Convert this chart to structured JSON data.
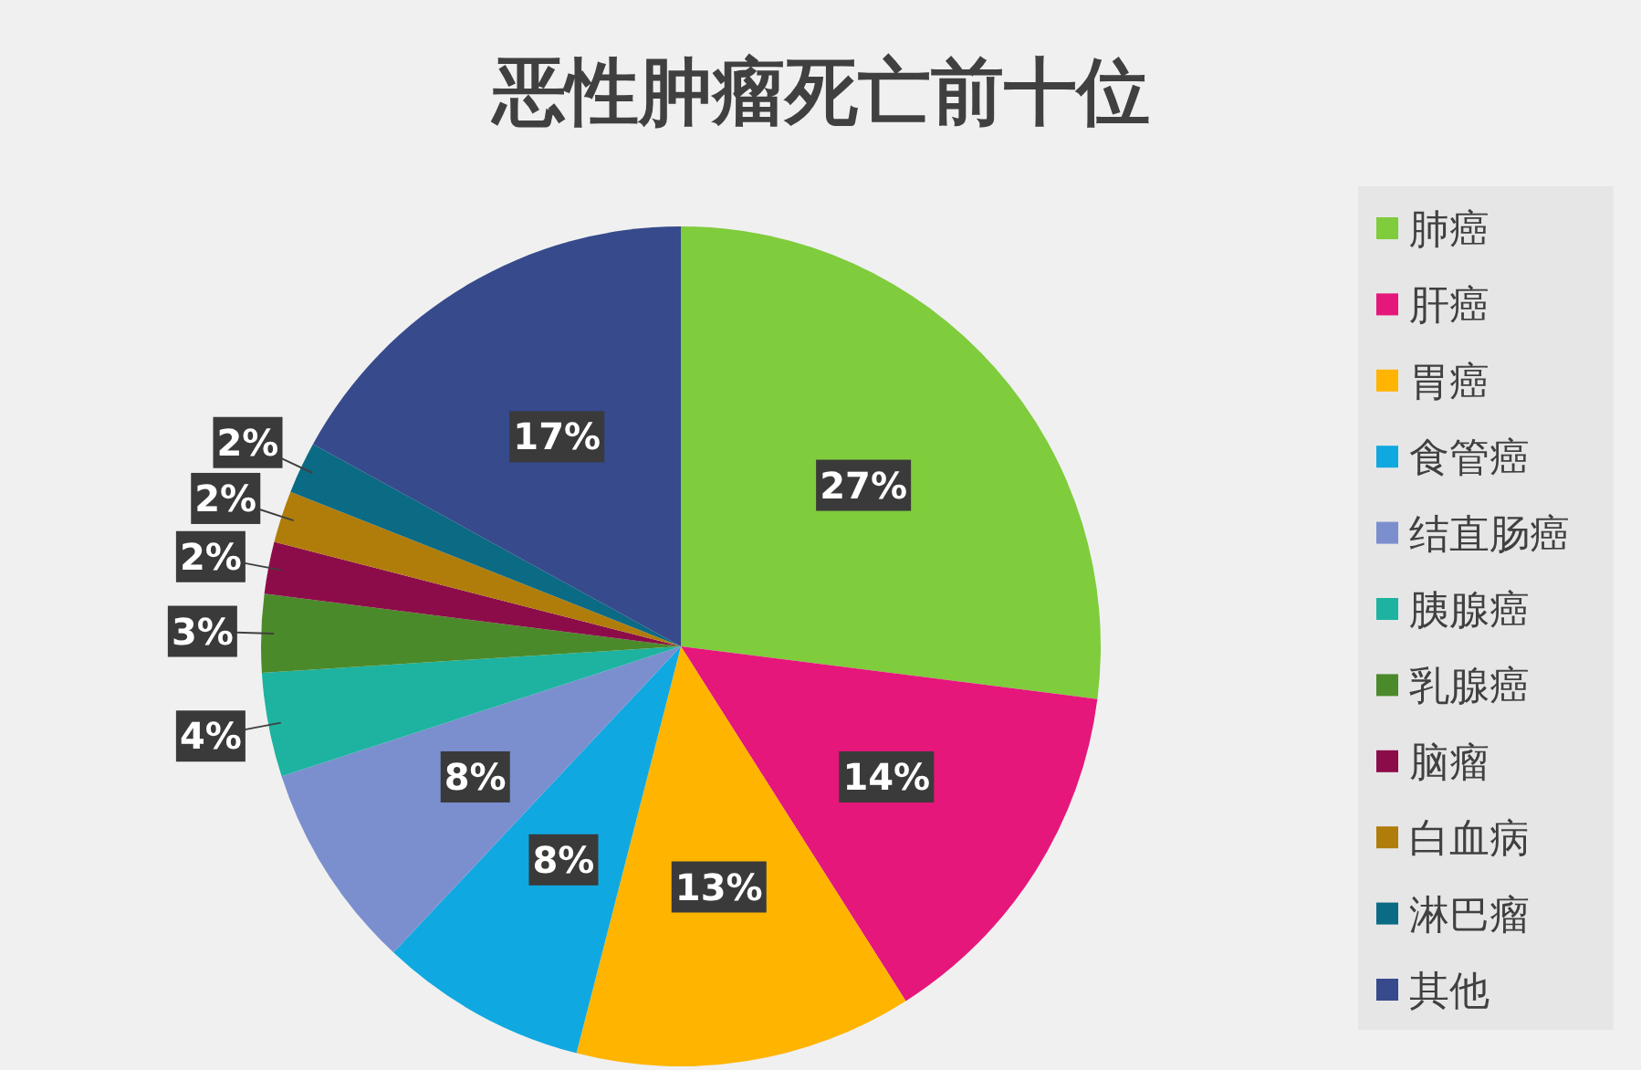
{
  "chart_data": {
    "type": "pie",
    "title": "恶性肿瘤死亡前十位",
    "categories": [
      "肺癌",
      "肝癌",
      "胃癌",
      "食管癌",
      "结直肠癌",
      "胰腺癌",
      "乳腺癌",
      "脑瘤",
      "白血病",
      "淋巴瘤",
      "其他"
    ],
    "values": [
      27,
      14,
      13,
      8,
      8,
      4,
      3,
      2,
      2,
      2,
      17
    ],
    "colors": [
      "#7fcc3c",
      "#e5177b",
      "#ffb400",
      "#10a8e0",
      "#7b8fcf",
      "#1db3a0",
      "#4b8a2a",
      "#8c0c4a",
      "#b07d0b",
      "#0b6a84",
      "#364a8c"
    ],
    "value_labels": [
      "27%",
      "14%",
      "13%",
      "8%",
      "8%",
      "4%",
      "3%",
      "2%",
      "2%",
      "2%",
      "17%"
    ],
    "legend": "right"
  }
}
